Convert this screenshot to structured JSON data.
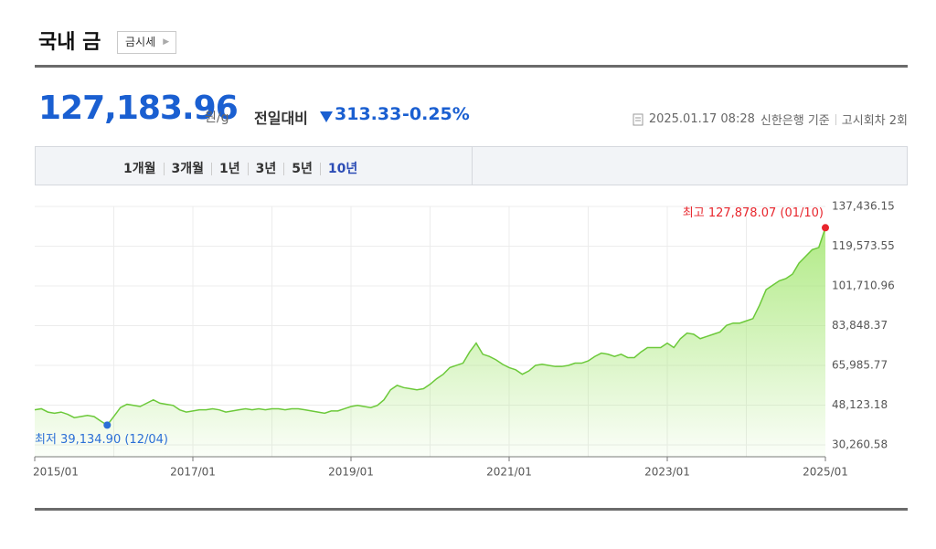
{
  "header": {
    "title": "국내 금",
    "button": "금시세"
  },
  "price": {
    "value": "127,183.96",
    "unit": "원/g",
    "change_label": "전일대비",
    "change": "313.33",
    "change_percent": "-0.25%"
  },
  "info": {
    "datetime": "2025.01.17 08:28",
    "source": "신한은행 기준",
    "round": "고시회차 2회"
  },
  "tabs": {
    "items": [
      "1개월",
      "3개월",
      "1년",
      "3년",
      "5년",
      "10년"
    ],
    "selected": 5
  },
  "chart_data": {
    "type": "area",
    "x": [
      "2015/01",
      "2015/02",
      "2015/03",
      "2015/04",
      "2015/05",
      "2015/06",
      "2015/07",
      "2015/08",
      "2015/09",
      "2015/10",
      "2015/11",
      "2015/12",
      "2016/01",
      "2016/02",
      "2016/03",
      "2016/04",
      "2016/05",
      "2016/06",
      "2016/07",
      "2016/08",
      "2016/09",
      "2016/10",
      "2016/11",
      "2016/12",
      "2017/01",
      "2017/02",
      "2017/03",
      "2017/04",
      "2017/05",
      "2017/06",
      "2017/07",
      "2017/08",
      "2017/09",
      "2017/10",
      "2017/11",
      "2017/12",
      "2018/01",
      "2018/02",
      "2018/03",
      "2018/04",
      "2018/05",
      "2018/06",
      "2018/07",
      "2018/08",
      "2018/09",
      "2018/10",
      "2018/11",
      "2018/12",
      "2019/01",
      "2019/02",
      "2019/03",
      "2019/04",
      "2019/05",
      "2019/06",
      "2019/07",
      "2019/08",
      "2019/09",
      "2019/10",
      "2019/11",
      "2019/12",
      "2020/01",
      "2020/02",
      "2020/03",
      "2020/04",
      "2020/05",
      "2020/06",
      "2020/07",
      "2020/08",
      "2020/09",
      "2020/10",
      "2020/11",
      "2020/12",
      "2021/01",
      "2021/02",
      "2021/03",
      "2021/04",
      "2021/05",
      "2021/06",
      "2021/07",
      "2021/08",
      "2021/09",
      "2021/10",
      "2021/11",
      "2021/12",
      "2022/01",
      "2022/02",
      "2022/03",
      "2022/04",
      "2022/05",
      "2022/06",
      "2022/07",
      "2022/08",
      "2022/09",
      "2022/10",
      "2022/11",
      "2022/12",
      "2023/01",
      "2023/02",
      "2023/03",
      "2023/04",
      "2023/05",
      "2023/06",
      "2023/07",
      "2023/08",
      "2023/09",
      "2023/10",
      "2023/11",
      "2023/12",
      "2024/01",
      "2024/02",
      "2024/03",
      "2024/04",
      "2024/05",
      "2024/06",
      "2024/07",
      "2024/08",
      "2024/09",
      "2024/10",
      "2024/11",
      "2024/12",
      "2025/01"
    ],
    "series": [
      {
        "color": "#6cc93a",
        "values": [
          46000,
          46500,
          45000,
          44500,
          45000,
          44000,
          42500,
          43000,
          43500,
          43000,
          41000,
          39134.9,
          43000,
          47000,
          48500,
          48000,
          47500,
          49000,
          50500,
          49000,
          48500,
          48000,
          46000,
          45000,
          45500,
          46000,
          46000,
          46500,
          46000,
          45000,
          45500,
          46000,
          46500,
          46000,
          46500,
          46000,
          46500,
          46500,
          46000,
          46500,
          46500,
          46000,
          45500,
          45000,
          44500,
          45500,
          45500,
          46500,
          47500,
          48000,
          47500,
          47000,
          48000,
          50500,
          55000,
          57000,
          56000,
          55500,
          55000,
          55500,
          57500,
          60000,
          62000,
          65000,
          66000,
          67000,
          72000,
          76000,
          71000,
          70000,
          68500,
          66500,
          65000,
          64000,
          62000,
          63500,
          66000,
          66500,
          66000,
          65500,
          65500,
          66000,
          67000,
          67000,
          68000,
          70000,
          71500,
          71000,
          70000,
          71000,
          69500,
          69500,
          72000,
          74000,
          74000,
          74000,
          76000,
          74000,
          78000,
          80500,
          80000,
          78000,
          79000,
          80000,
          81000,
          84000,
          85000,
          85000,
          86000,
          87000,
          93000,
          100000,
          102000,
          104000,
          105000,
          107000,
          112000,
          115000,
          118000,
          119000,
          127878.07
        ]
      }
    ],
    "ylim": [
      24920,
      137436.15
    ],
    "yticks": [
      {
        "value": 30260.58,
        "label": "30,260.58"
      },
      {
        "value": 48123.18,
        "label": "48,123.18"
      },
      {
        "value": 65985.77,
        "label": "65,985.77"
      },
      {
        "value": 83848.37,
        "label": "83,848.37"
      },
      {
        "value": 101710.96,
        "label": "101,710.96"
      },
      {
        "value": 119573.55,
        "label": "119,573.55"
      },
      {
        "value": 137436.15,
        "label": "137,436.15"
      }
    ],
    "xticks": [
      "2015/01",
      "2017/01",
      "2019/01",
      "2021/01",
      "2023/01",
      "2025/01"
    ],
    "grid": true,
    "annotations": {
      "high": "최고 127,878.07 (01/10)",
      "low": "최저 39,134.90 (12/04)"
    },
    "high_color": "#e8262d",
    "low_color": "#2b6fd6"
  }
}
